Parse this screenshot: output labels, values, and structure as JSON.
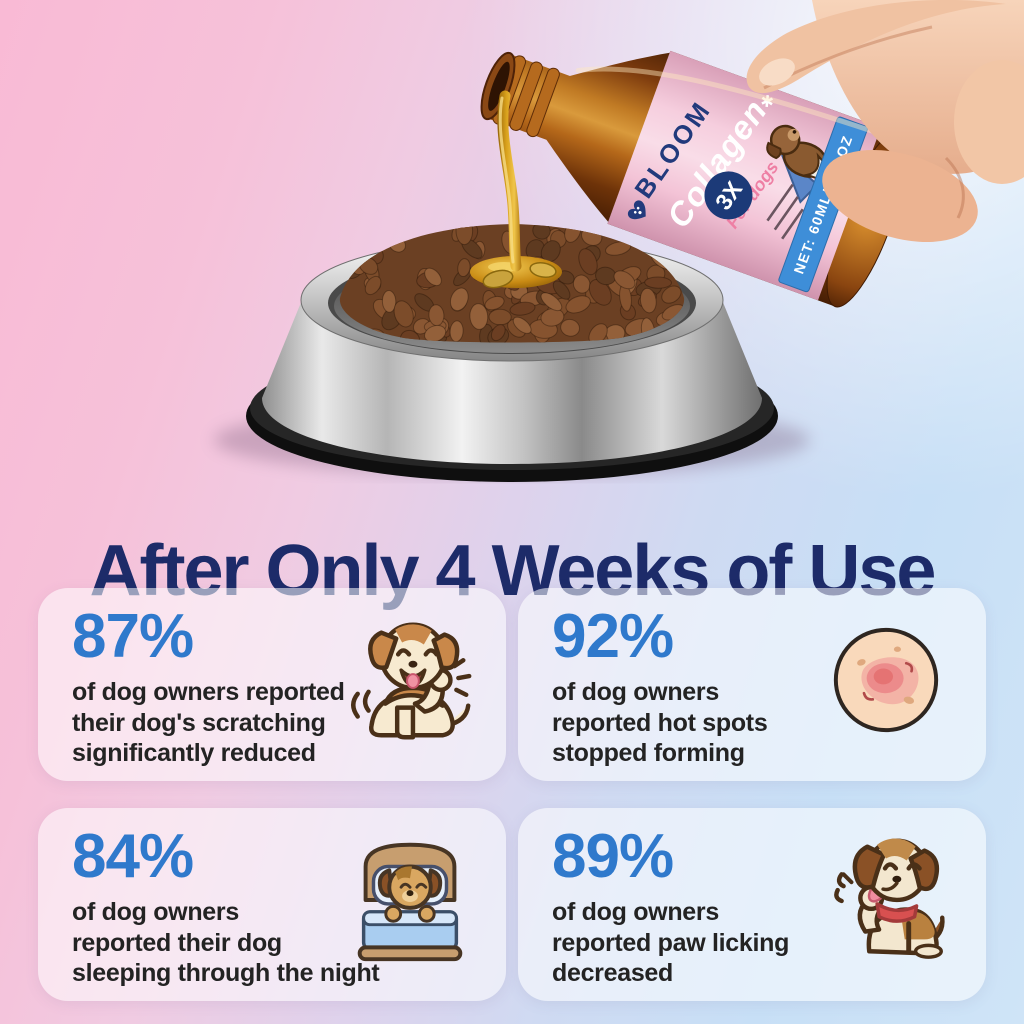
{
  "headline": {
    "text": "After Only 4 Weeks of Use"
  },
  "product": {
    "brand": "BLOOM",
    "name": "Collagen",
    "name_mark": "✱",
    "subtext": "For dogs",
    "strength_badge": "3X",
    "net_contents": "NET: 60ML/2FL OZ"
  },
  "stats": [
    {
      "percent": "87%",
      "lines": [
        "of dog owners reported",
        "their dog's scratching",
        "significantly reduced"
      ],
      "icon": "scratching-dog-icon"
    },
    {
      "percent": "92%",
      "lines": [
        "of dog owners",
        "reported hot spots",
        "stopped forming"
      ],
      "icon": "hot-spot-icon"
    },
    {
      "percent": "84%",
      "lines": [
        "of dog owners",
        "reported their dog",
        "sleeping through the night"
      ],
      "icon": "sleeping-dog-in-bed-icon"
    },
    {
      "percent": "89%",
      "lines": [
        "of dog owners",
        "reported paw licking",
        "decreased"
      ],
      "icon": "paw-licking-dog-icon"
    }
  ],
  "colors": {
    "headline_navy": "#1d2b69",
    "stat_blue": "#2f79cc",
    "body_text": "#232323",
    "label_pink": "#f4c6d8",
    "banner_blue": "#3e8ed8",
    "brand_navy": "#223a7c",
    "bottle_amber": "#a05c16",
    "background_pink": "#f7bcd6",
    "background_blue": "#c9e0f6"
  }
}
